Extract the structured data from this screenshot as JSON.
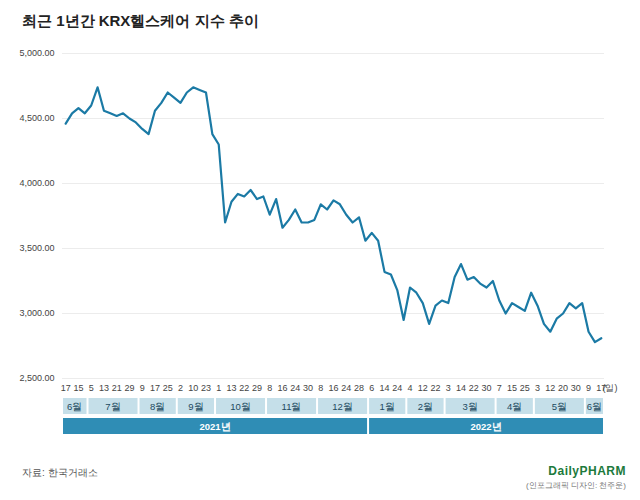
{
  "chart_data": {
    "type": "line",
    "title": "최근 1년간 KRX헬스케어 지수 추이",
    "source": "자료: 한국거래소",
    "logo": "DailyPHARM",
    "credit": "(인포그래픽 디자인: 천주운)",
    "xlabel": "(일)",
    "color": "#1b7aa5",
    "grid": true,
    "categories": [
      "17",
      null,
      "15",
      null,
      "5",
      null,
      "13",
      null,
      "21",
      null,
      "29",
      null,
      "9",
      null,
      "17",
      null,
      "25",
      null,
      "2",
      null,
      "10",
      null,
      "23",
      null,
      "1",
      null,
      "13",
      null,
      "22",
      null,
      "29",
      null,
      "8",
      null,
      "16",
      null,
      "24",
      null,
      "30",
      null,
      "8",
      null,
      "16",
      null,
      "24",
      null,
      "28",
      null,
      "6",
      null,
      "14",
      null,
      "24",
      null,
      "4",
      null,
      "12",
      null,
      "22",
      null,
      "3",
      null,
      "14",
      null,
      "22",
      null,
      "30",
      null,
      "7",
      null,
      "15",
      null,
      "25",
      null,
      "3",
      null,
      "12",
      null,
      "20",
      null,
      "30",
      null,
      "9",
      null,
      "17"
    ],
    "values": [
      4460,
      4540,
      4580,
      4540,
      4600,
      4740,
      4560,
      4540,
      4520,
      4540,
      4500,
      4470,
      4420,
      4380,
      4560,
      4620,
      4700,
      4660,
      4620,
      4700,
      4740,
      4720,
      4700,
      4380,
      4300,
      3700,
      3860,
      3920,
      3900,
      3950,
      3880,
      3900,
      3760,
      3880,
      3660,
      3720,
      3800,
      3700,
      3700,
      3720,
      3840,
      3800,
      3870,
      3840,
      3760,
      3700,
      3740,
      3560,
      3620,
      3560,
      3320,
      3300,
      3180,
      2950,
      3200,
      3160,
      3080,
      2920,
      3060,
      3100,
      3080,
      3280,
      3380,
      3260,
      3280,
      3230,
      3200,
      3250,
      3100,
      3000,
      3080,
      3050,
      3020,
      3160,
      3060,
      2920,
      2860,
      2960,
      3000,
      3080,
      3040,
      3080,
      2860,
      2780,
      2810
    ],
    "month_groups": [
      {
        "label": "6월",
        "count": 4
      },
      {
        "label": "7월",
        "count": 8
      },
      {
        "label": "8월",
        "count": 6
      },
      {
        "label": "9월",
        "count": 6
      },
      {
        "label": "10월",
        "count": 8
      },
      {
        "label": "11월",
        "count": 8
      },
      {
        "label": "12월",
        "count": 8
      },
      {
        "label": "1월",
        "count": 6
      },
      {
        "label": "2월",
        "count": 6
      },
      {
        "label": "3월",
        "count": 8
      },
      {
        "label": "4월",
        "count": 6
      },
      {
        "label": "5월",
        "count": 8
      },
      {
        "label": "6월",
        "count": 3
      }
    ],
    "year_groups": [
      {
        "label": "2021년",
        "count": 48
      },
      {
        "label": "2022년",
        "count": 37
      }
    ],
    "ylim": [
      2500,
      5000
    ],
    "yticks": [
      {
        "value": 2500,
        "label": "2,500.00"
      },
      {
        "value": 3000,
        "label": "3,000.00"
      },
      {
        "value": 3500,
        "label": "3,500.00"
      },
      {
        "value": 4000,
        "label": "4,000.00"
      },
      {
        "value": 4500,
        "label": "4,500.00"
      },
      {
        "value": 5000,
        "label": "5,000.00"
      }
    ]
  }
}
